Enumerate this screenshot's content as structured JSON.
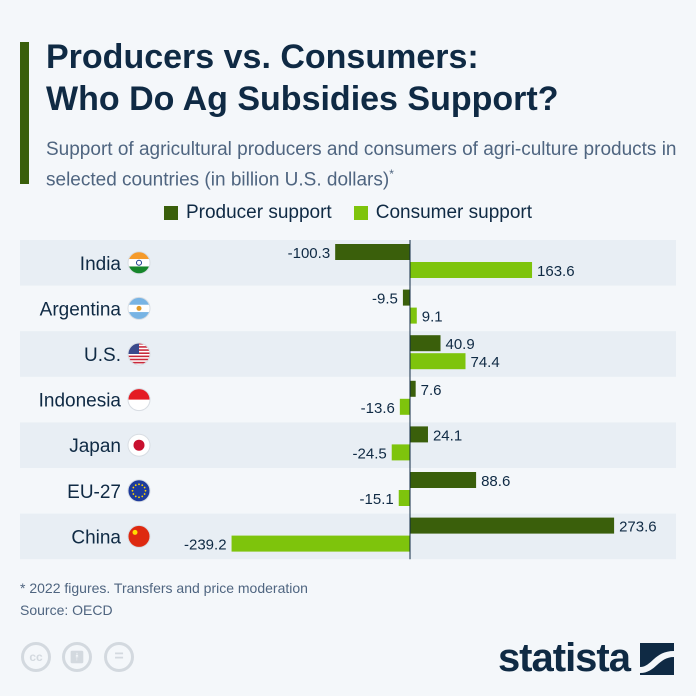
{
  "header": {
    "title_line1": "Producers vs. Consumers:",
    "title_line2": "Who Do Ag Subsidies Support?",
    "subtitle": "Support of agricultural producers and consumers of agri-culture products in selected countries (in billion U.S. dollars)",
    "subtitle_mark": "*"
  },
  "colors": {
    "producer": "#3a5f0b",
    "consumer": "#7ec40c",
    "accent": "#3a5f0b",
    "band": "#e8eef4"
  },
  "chart_data": {
    "type": "bar",
    "orientation": "horizontal",
    "categories": [
      "India",
      "Argentina",
      "U.S.",
      "Indonesia",
      "Japan",
      "EU-27",
      "China"
    ],
    "flags": [
      "india-flag-icon",
      "argentina-flag-icon",
      "us-flag-icon",
      "indonesia-flag-icon",
      "japan-flag-icon",
      "eu-flag-icon",
      "china-flag-icon"
    ],
    "series": [
      {
        "name": "Producer support",
        "values": [
          -100.3,
          -9.5,
          40.9,
          7.6,
          24.1,
          88.6,
          273.6
        ],
        "labels": [
          "-100.3",
          "-9.5",
          "40.9",
          "7.6",
          "24.1",
          "88.6",
          "273.6"
        ]
      },
      {
        "name": "Consumer support",
        "values": [
          163.6,
          9.1,
          74.4,
          -13.6,
          -24.5,
          -15.1,
          -239.2
        ],
        "labels": [
          "163.6",
          "9.1",
          "74.4",
          "-13.6",
          "-24.5",
          "-15.1",
          "-239.2"
        ]
      }
    ],
    "legend": "top",
    "grid": false
  },
  "footer": {
    "note": "* 2022 figures. Transfers and price moderation",
    "source": "Source: OECD",
    "cc": "cc",
    "brand": "statista"
  }
}
